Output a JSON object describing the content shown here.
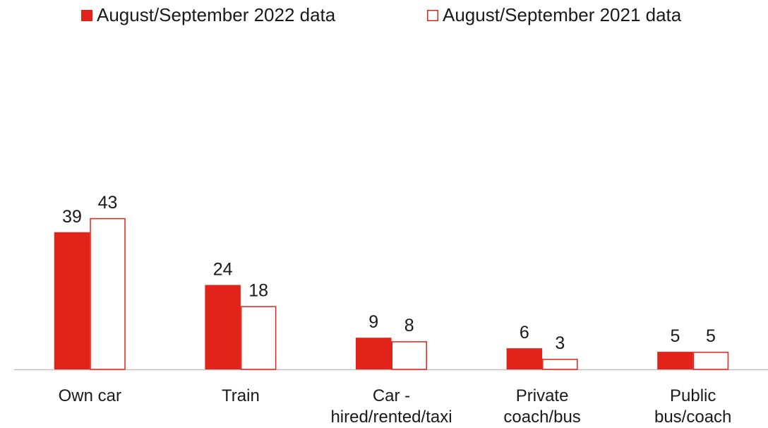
{
  "chart_data": {
    "type": "bar",
    "categories": [
      "Own car",
      "Train",
      "Car -\nhired/rented/taxi",
      "Private\ncoach/bus",
      "Public\nbus/coach"
    ],
    "series": [
      {
        "name": "August/September 2022 data",
        "color": "#e2231a",
        "filled": true,
        "values": [
          39,
          24,
          9,
          6,
          5
        ]
      },
      {
        "name": "August/September 2021 data",
        "color": "#e2231a",
        "filled": false,
        "values": [
          43,
          18,
          8,
          3,
          5
        ]
      }
    ],
    "legend": "top"
  }
}
